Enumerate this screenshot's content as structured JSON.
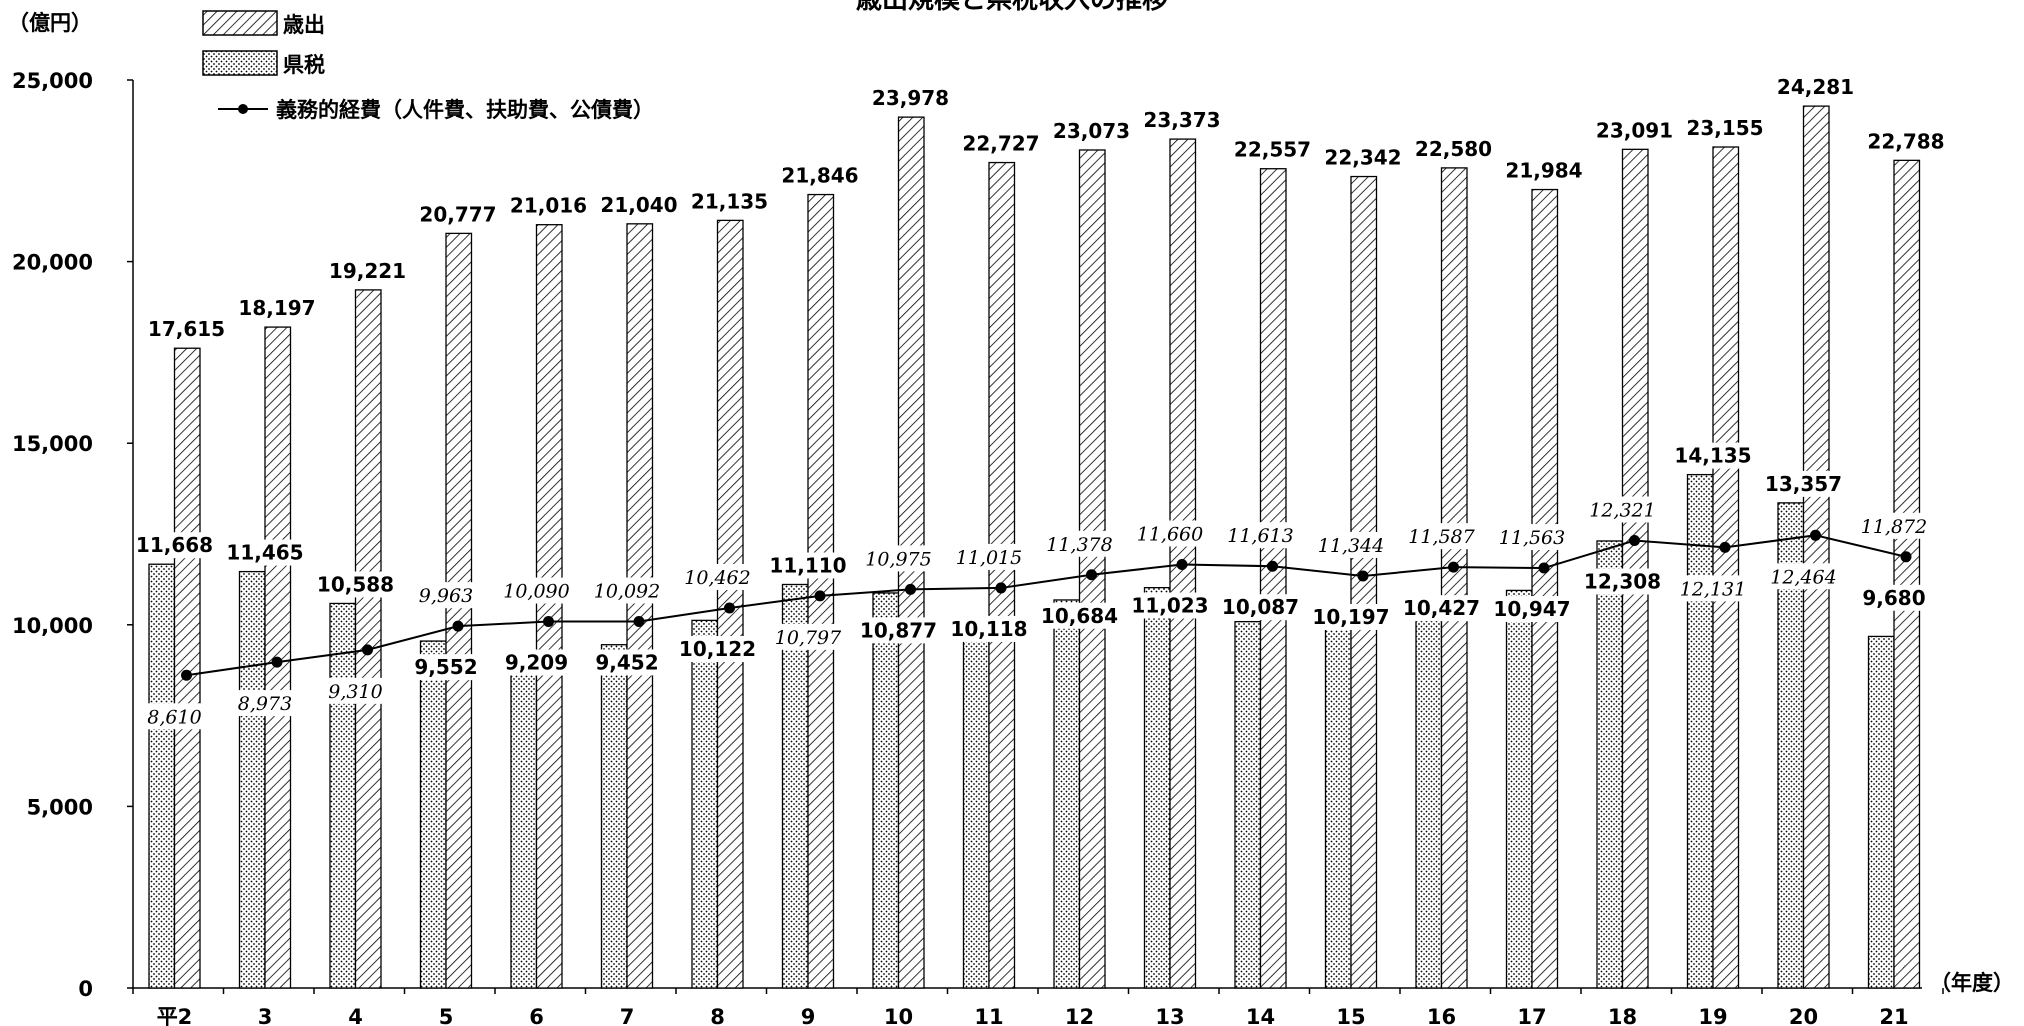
{
  "chart_data": {
    "type": "bar",
    "title": "歳出規模と県税収入の推移",
    "ylabel": "（億円）",
    "xlabel": "（年度）",
    "ylim": [
      0,
      25000
    ],
    "yticks": [
      "0",
      "5,000",
      "10,000",
      "15,000",
      "20,000",
      "25,000"
    ],
    "grid": false,
    "legend": "top-left",
    "categories": [
      "平2",
      "3",
      "4",
      "5",
      "6",
      "7",
      "8",
      "9",
      "10",
      "11",
      "12",
      "13",
      "14",
      "15",
      "16",
      "17",
      "18",
      "19",
      "20",
      "21"
    ],
    "series": [
      {
        "name": "県税",
        "type": "bar",
        "pattern": "dots",
        "values": [
          11668,
          11465,
          10588,
          9552,
          9209,
          9452,
          10122,
          11110,
          10877,
          10118,
          10684,
          11023,
          10087,
          10197,
          10427,
          10947,
          12308,
          14135,
          13357,
          9680
        ],
        "labels": [
          "11,668",
          "11,465",
          "10,588",
          "9,552",
          "9,209",
          "9,452",
          "10,122",
          "11,110",
          "10,877",
          "10,118",
          "10,684",
          "11,023",
          "10,087",
          "10,197",
          "10,427",
          "10,947",
          "12,308",
          "14,135",
          "13,357",
          "9,680"
        ]
      },
      {
        "name": "歳出",
        "type": "bar",
        "pattern": "hatch",
        "values": [
          17615,
          18197,
          19221,
          20777,
          21016,
          21040,
          21135,
          21846,
          23978,
          22727,
          23073,
          23373,
          22557,
          22342,
          22580,
          21984,
          23091,
          23155,
          24281,
          22788
        ],
        "labels": [
          "17,615",
          "18,197",
          "19,221",
          "20,777",
          "21,016",
          "21,040",
          "21,135",
          "21,846",
          "23,978",
          "22,727",
          "23,073",
          "23,373",
          "22,557",
          "22,342",
          "22,580",
          "21,984",
          "23,091",
          "23,155",
          "24,281",
          "22,788"
        ]
      },
      {
        "name": "義務的経費（人件費、扶助費、公債費）",
        "type": "line",
        "values": [
          8610,
          8973,
          9310,
          9963,
          10090,
          10092,
          10462,
          10797,
          10975,
          11015,
          11378,
          11660,
          11613,
          11344,
          11587,
          11563,
          12321,
          12131,
          12464,
          11872
        ],
        "labels": [
          "8,610",
          "8,973",
          "9,310",
          "9,963",
          "10,090",
          "10,092",
          "10,462",
          "10,797",
          "10,975",
          "11,015",
          "11,378",
          "11,660",
          "11,613",
          "11,344",
          "11,587",
          "11,563",
          "12,321",
          "12,131",
          "12,464",
          "11,872"
        ]
      }
    ],
    "colors": {
      "bar_fill": "#ffffff",
      "stroke": "#000000"
    }
  }
}
